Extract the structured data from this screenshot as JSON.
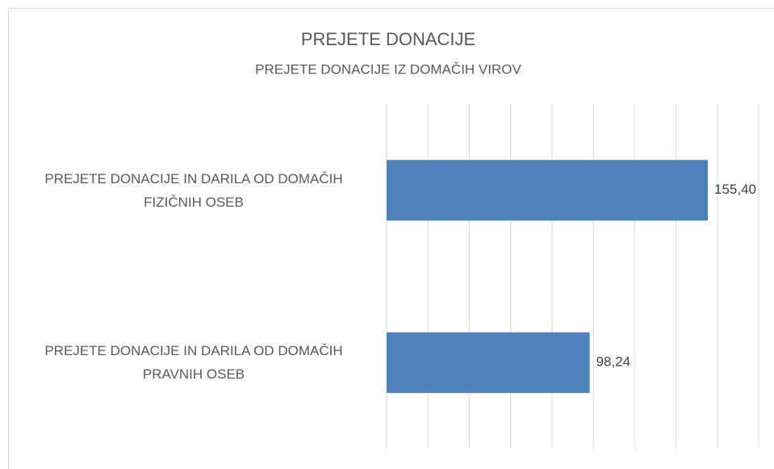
{
  "chart_data": {
    "type": "bar",
    "orientation": "horizontal",
    "title": "PREJETE DONACIJE",
    "subtitle": "PREJETE DONACIJE IZ DOMAČIH VIROV",
    "categories": [
      "PREJETE DONACIJE IN DARILA OD DOMAČIH\nFIZIČNIH OSEB",
      "PREJETE DONACIJE IN DARILA OD DOMAČIH\nPRAVNIH OSEB"
    ],
    "values": [
      155.4,
      98.24
    ],
    "value_labels": [
      "155,40",
      "98,24"
    ],
    "color": "#4f81bd",
    "xlim": [
      0,
      180
    ],
    "xticks": [
      0,
      20,
      40,
      60,
      80,
      100,
      120,
      140,
      160,
      180
    ],
    "grid": true
  }
}
